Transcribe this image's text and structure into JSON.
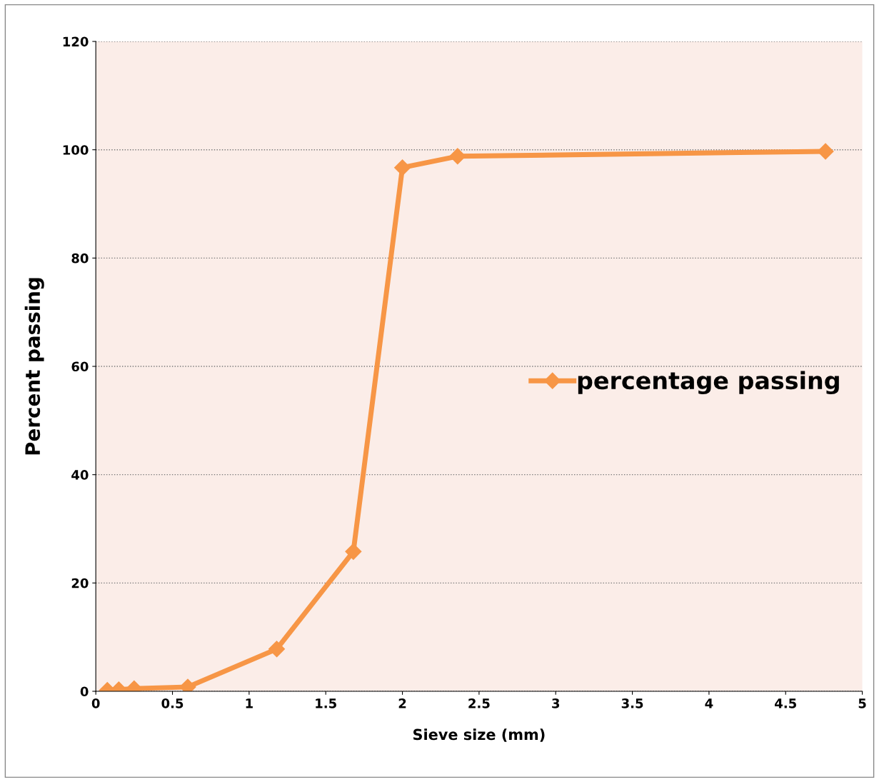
{
  "chart_data": {
    "type": "line",
    "xlabel": "Sieve size (mm)",
    "ylabel": "Percent passing",
    "series": [
      {
        "name": "percentage passing",
        "color": "#f79646",
        "x": [
          0.075,
          0.15,
          0.25,
          0.6,
          1.18,
          1.68,
          2,
          2.36,
          4.76
        ],
        "values": [
          0.2,
          0.3,
          0.5,
          0.8,
          7.8,
          25.8,
          96.7,
          98.8,
          99.7
        ]
      }
    ],
    "xlim": [
      0,
      5
    ],
    "xticks": [
      0,
      0.5,
      1,
      1.5,
      2,
      2.5,
      3,
      3.5,
      4,
      4.5,
      5
    ],
    "ylim": [
      0,
      120
    ],
    "yticks": [
      0,
      20,
      40,
      60,
      80,
      100,
      120
    ],
    "grid": "y",
    "legend": "center right",
    "marker": "diamond",
    "line_style": "solid"
  }
}
